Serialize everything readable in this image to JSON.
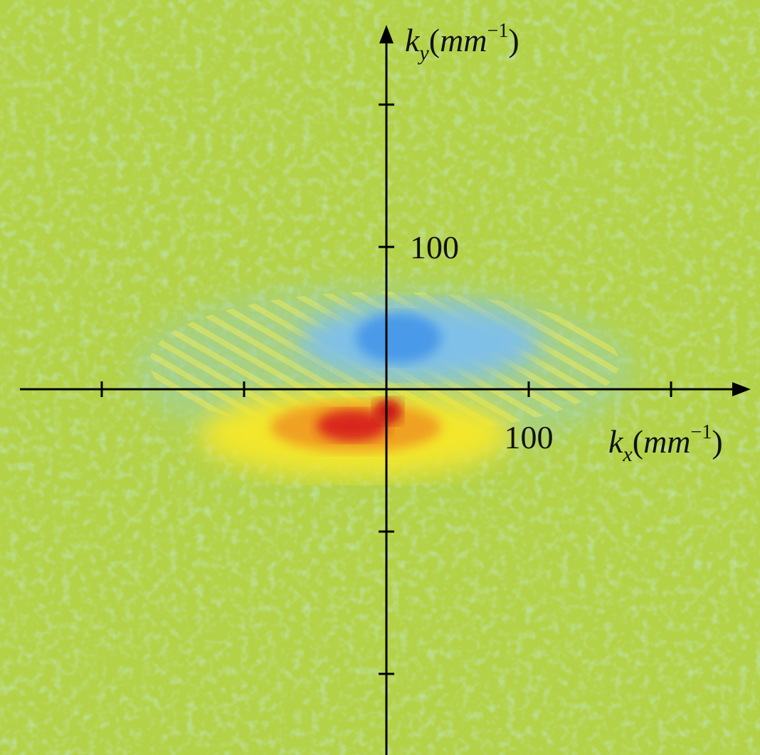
{
  "chart_data": {
    "type": "heatmap",
    "x_label": {
      "symbol": "k",
      "subscript": "x",
      "unit_open": "(",
      "unit": "mm",
      "exponent": "−1",
      "unit_close": ")"
    },
    "y_label": {
      "symbol": "k",
      "subscript": "y",
      "unit_open": "(",
      "unit": "mm",
      "exponent": "−1",
      "unit_close": ")"
    },
    "xlim": [
      -257.5,
      256
    ],
    "ylim": [
      -257,
      256
    ],
    "xticks": [
      -200,
      -100,
      100,
      200
    ],
    "xtick_labels": [
      null,
      null,
      "100",
      null
    ],
    "yticks": [
      200,
      100,
      -100,
      -200
    ],
    "ytick_labels": [
      null,
      "100",
      null,
      null
    ],
    "grid": false
  }
}
